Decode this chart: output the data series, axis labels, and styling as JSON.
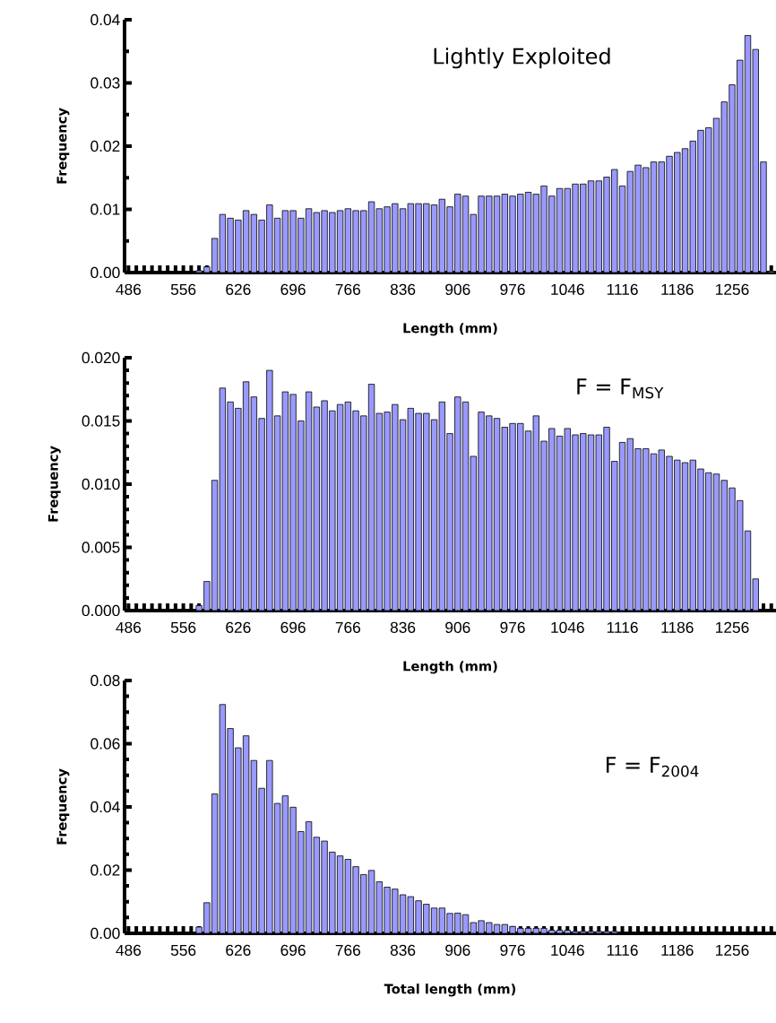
{
  "chart_data": [
    {
      "type": "bar",
      "title": "Lightly Exploited",
      "xlabel": "Length (mm)",
      "ylabel": "Frequency",
      "color": "#9999ff",
      "categories": [
        "486",
        null,
        null,
        null,
        null,
        null,
        null,
        "556",
        null,
        null,
        null,
        null,
        null,
        null,
        "626",
        null,
        null,
        null,
        null,
        null,
        null,
        "696",
        null,
        null,
        null,
        null,
        null,
        null,
        "766",
        null,
        null,
        null,
        null,
        null,
        null,
        "836",
        null,
        null,
        null,
        null,
        null,
        null,
        "906",
        null,
        null,
        null,
        null,
        null,
        null,
        "976",
        null,
        null,
        null,
        null,
        null,
        null,
        "1046",
        null,
        null,
        null,
        null,
        null,
        null,
        "1116",
        null,
        null,
        null,
        null,
        null,
        null,
        "1186",
        null,
        null,
        null,
        null,
        null,
        null,
        "1256",
        null,
        null,
        null,
        null,
        null
      ],
      "values": [
        0,
        0,
        0,
        0,
        0,
        0,
        0,
        0,
        0,
        0.0003,
        0.0009,
        0.0054,
        0.0092,
        0.0086,
        0.0083,
        0.0098,
        0.0092,
        0.0083,
        0.0107,
        0.0086,
        0.0098,
        0.0098,
        0.0086,
        0.0101,
        0.0095,
        0.0098,
        0.0095,
        0.0098,
        0.0101,
        0.0098,
        0.0098,
        0.0112,
        0.0101,
        0.0104,
        0.0109,
        0.0101,
        0.0109,
        0.0109,
        0.0109,
        0.0107,
        0.0116,
        0.0104,
        0.0124,
        0.0121,
        0.0092,
        0.0121,
        0.0121,
        0.0121,
        0.0124,
        0.0121,
        0.0124,
        0.0127,
        0.0124,
        0.0137,
        0.0121,
        0.0133,
        0.0133,
        0.014,
        0.014,
        0.0145,
        0.0145,
        0.0151,
        0.0163,
        0.0137,
        0.016,
        0.017,
        0.0166,
        0.0175,
        0.0175,
        0.0184,
        0.019,
        0.0196,
        0.0208,
        0.0225,
        0.0229,
        0.0244,
        0.027,
        0.0297,
        0.0336,
        0.0375,
        0.0353,
        0.0175,
        0.0002
      ],
      "ylim": [
        0,
        0.04
      ],
      "yticks": [
        {
          "value": 0,
          "label": "0.00"
        },
        {
          "value": 0.005,
          "label": null
        },
        {
          "value": 0.01,
          "label": "0.01"
        },
        {
          "value": 0.015,
          "label": null
        },
        {
          "value": 0.02,
          "label": "0.02"
        },
        {
          "value": 0.025,
          "label": null
        },
        {
          "value": 0.03,
          "label": "0.03"
        },
        {
          "value": 0.035,
          "label": null
        },
        {
          "value": 0.04,
          "label": "0.04"
        }
      ]
    },
    {
      "type": "bar",
      "title": "F = F$_{MSY}$",
      "xlabel": "Length (mm)",
      "ylabel": "Frequency",
      "color": "#9999ff",
      "categories": [
        "486",
        null,
        null,
        null,
        null,
        null,
        null,
        "556",
        null,
        null,
        null,
        null,
        null,
        null,
        "626",
        null,
        null,
        null,
        null,
        null,
        null,
        "696",
        null,
        null,
        null,
        null,
        null,
        null,
        "766",
        null,
        null,
        null,
        null,
        null,
        null,
        "836",
        null,
        null,
        null,
        null,
        null,
        null,
        "906",
        null,
        null,
        null,
        null,
        null,
        null,
        "976",
        null,
        null,
        null,
        null,
        null,
        null,
        "1046",
        null,
        null,
        null,
        null,
        null,
        null,
        "1116",
        null,
        null,
        null,
        null,
        null,
        null,
        "1186",
        null,
        null,
        null,
        null,
        null,
        null,
        "1256",
        null,
        null,
        null,
        null,
        null
      ],
      "values": [
        0,
        0,
        0,
        0,
        0,
        0,
        0,
        0,
        0,
        0.0004,
        0.0023,
        0.0103,
        0.0176,
        0.0165,
        0.016,
        0.0181,
        0.0169,
        0.0152,
        0.019,
        0.0154,
        0.0173,
        0.0171,
        0.015,
        0.0173,
        0.0161,
        0.0166,
        0.0158,
        0.0163,
        0.0165,
        0.0158,
        0.0154,
        0.0179,
        0.0156,
        0.0157,
        0.0163,
        0.0151,
        0.016,
        0.0156,
        0.0156,
        0.0151,
        0.0165,
        0.014,
        0.0169,
        0.0165,
        0.0122,
        0.0157,
        0.0154,
        0.0152,
        0.0145,
        0.0148,
        0.0148,
        0.0142,
        0.0154,
        0.0134,
        0.0144,
        0.0138,
        0.0144,
        0.0139,
        0.014,
        0.0139,
        0.0139,
        0.0145,
        0.0118,
        0.0133,
        0.0136,
        0.0128,
        0.0128,
        0.0124,
        0.0127,
        0.0122,
        0.0119,
        0.0117,
        0.0119,
        0.0112,
        0.0109,
        0.0108,
        0.0103,
        0.0097,
        0.0087,
        0.0063,
        0.0025,
        0,
        0
      ],
      "ylim": [
        0,
        0.02
      ],
      "yticks": [
        {
          "value": 0,
          "label": "0.000"
        },
        {
          "value": 0.001,
          "label": null
        },
        {
          "value": 0.002,
          "label": null
        },
        {
          "value": 0.003,
          "label": null
        },
        {
          "value": 0.004,
          "label": null
        },
        {
          "value": 0.005,
          "label": "0.005"
        },
        {
          "value": 0.006,
          "label": null
        },
        {
          "value": 0.007,
          "label": null
        },
        {
          "value": 0.008,
          "label": null
        },
        {
          "value": 0.009,
          "label": null
        },
        {
          "value": 0.01,
          "label": "0.010"
        },
        {
          "value": 0.011,
          "label": null
        },
        {
          "value": 0.012,
          "label": null
        },
        {
          "value": 0.013,
          "label": null
        },
        {
          "value": 0.014,
          "label": null
        },
        {
          "value": 0.015,
          "label": "0.015"
        },
        {
          "value": 0.016,
          "label": null
        },
        {
          "value": 0.017,
          "label": null
        },
        {
          "value": 0.018,
          "label": null
        },
        {
          "value": 0.019,
          "label": null
        },
        {
          "value": 0.02,
          "label": "0.020"
        }
      ]
    },
    {
      "type": "bar",
      "title": "F = F$_{2004}$",
      "xlabel": "Total length (mm)",
      "ylabel": "Frequency",
      "color": "#9999ff",
      "categories": [
        "486",
        null,
        null,
        null,
        null,
        null,
        null,
        "556",
        null,
        null,
        null,
        null,
        null,
        null,
        "626",
        null,
        null,
        null,
        null,
        null,
        null,
        "696",
        null,
        null,
        null,
        null,
        null,
        null,
        "766",
        null,
        null,
        null,
        null,
        null,
        null,
        "836",
        null,
        null,
        null,
        null,
        null,
        null,
        "906",
        null,
        null,
        null,
        null,
        null,
        null,
        "976",
        null,
        null,
        null,
        null,
        null,
        null,
        "1046",
        null,
        null,
        null,
        null,
        null,
        null,
        "1116",
        null,
        null,
        null,
        null,
        null,
        null,
        "1186",
        null,
        null,
        null,
        null,
        null,
        null,
        "1256",
        null,
        null,
        null,
        null,
        null
      ],
      "values": [
        0,
        0,
        0,
        0,
        0,
        0,
        0,
        0,
        0,
        0.002,
        0.0097,
        0.0441,
        0.0724,
        0.0648,
        0.0587,
        0.0625,
        0.0547,
        0.0459,
        0.0547,
        0.0411,
        0.0435,
        0.0399,
        0.0322,
        0.0353,
        0.0304,
        0.0292,
        0.0257,
        0.0245,
        0.0234,
        0.0211,
        0.0186,
        0.0199,
        0.0163,
        0.0146,
        0.014,
        0.0122,
        0.0116,
        0.0103,
        0.0092,
        0.008,
        0.008,
        0.0063,
        0.0064,
        0.0059,
        0.0034,
        0.004,
        0.0034,
        0.0028,
        0.0028,
        0.0022,
        0.0016,
        0.0016,
        0.0016,
        0.0016,
        0.001,
        0.001,
        0.001,
        0.0006,
        0.0006,
        0.0006,
        0.0006,
        0.0006,
        0.0006,
        0,
        0,
        0,
        0,
        0,
        0,
        0,
        0,
        0,
        0,
        0,
        0,
        0,
        0,
        0,
        0,
        0,
        0,
        0,
        0
      ],
      "ylim": [
        0,
        0.08
      ],
      "yticks": [
        {
          "value": 0,
          "label": "0.00"
        },
        {
          "value": 0.005,
          "label": null
        },
        {
          "value": 0.01,
          "label": null
        },
        {
          "value": 0.015,
          "label": null
        },
        {
          "value": 0.02,
          "label": "0.02"
        },
        {
          "value": 0.025,
          "label": null
        },
        {
          "value": 0.03,
          "label": null
        },
        {
          "value": 0.035,
          "label": null
        },
        {
          "value": 0.04,
          "label": "0.04"
        },
        {
          "value": 0.045,
          "label": null
        },
        {
          "value": 0.05,
          "label": null
        },
        {
          "value": 0.055,
          "label": null
        },
        {
          "value": 0.06,
          "label": "0.06"
        },
        {
          "value": 0.065,
          "label": null
        },
        {
          "value": 0.07,
          "label": null
        },
        {
          "value": 0.075,
          "label": null
        },
        {
          "value": 0.08,
          "label": "0.08"
        }
      ]
    }
  ]
}
